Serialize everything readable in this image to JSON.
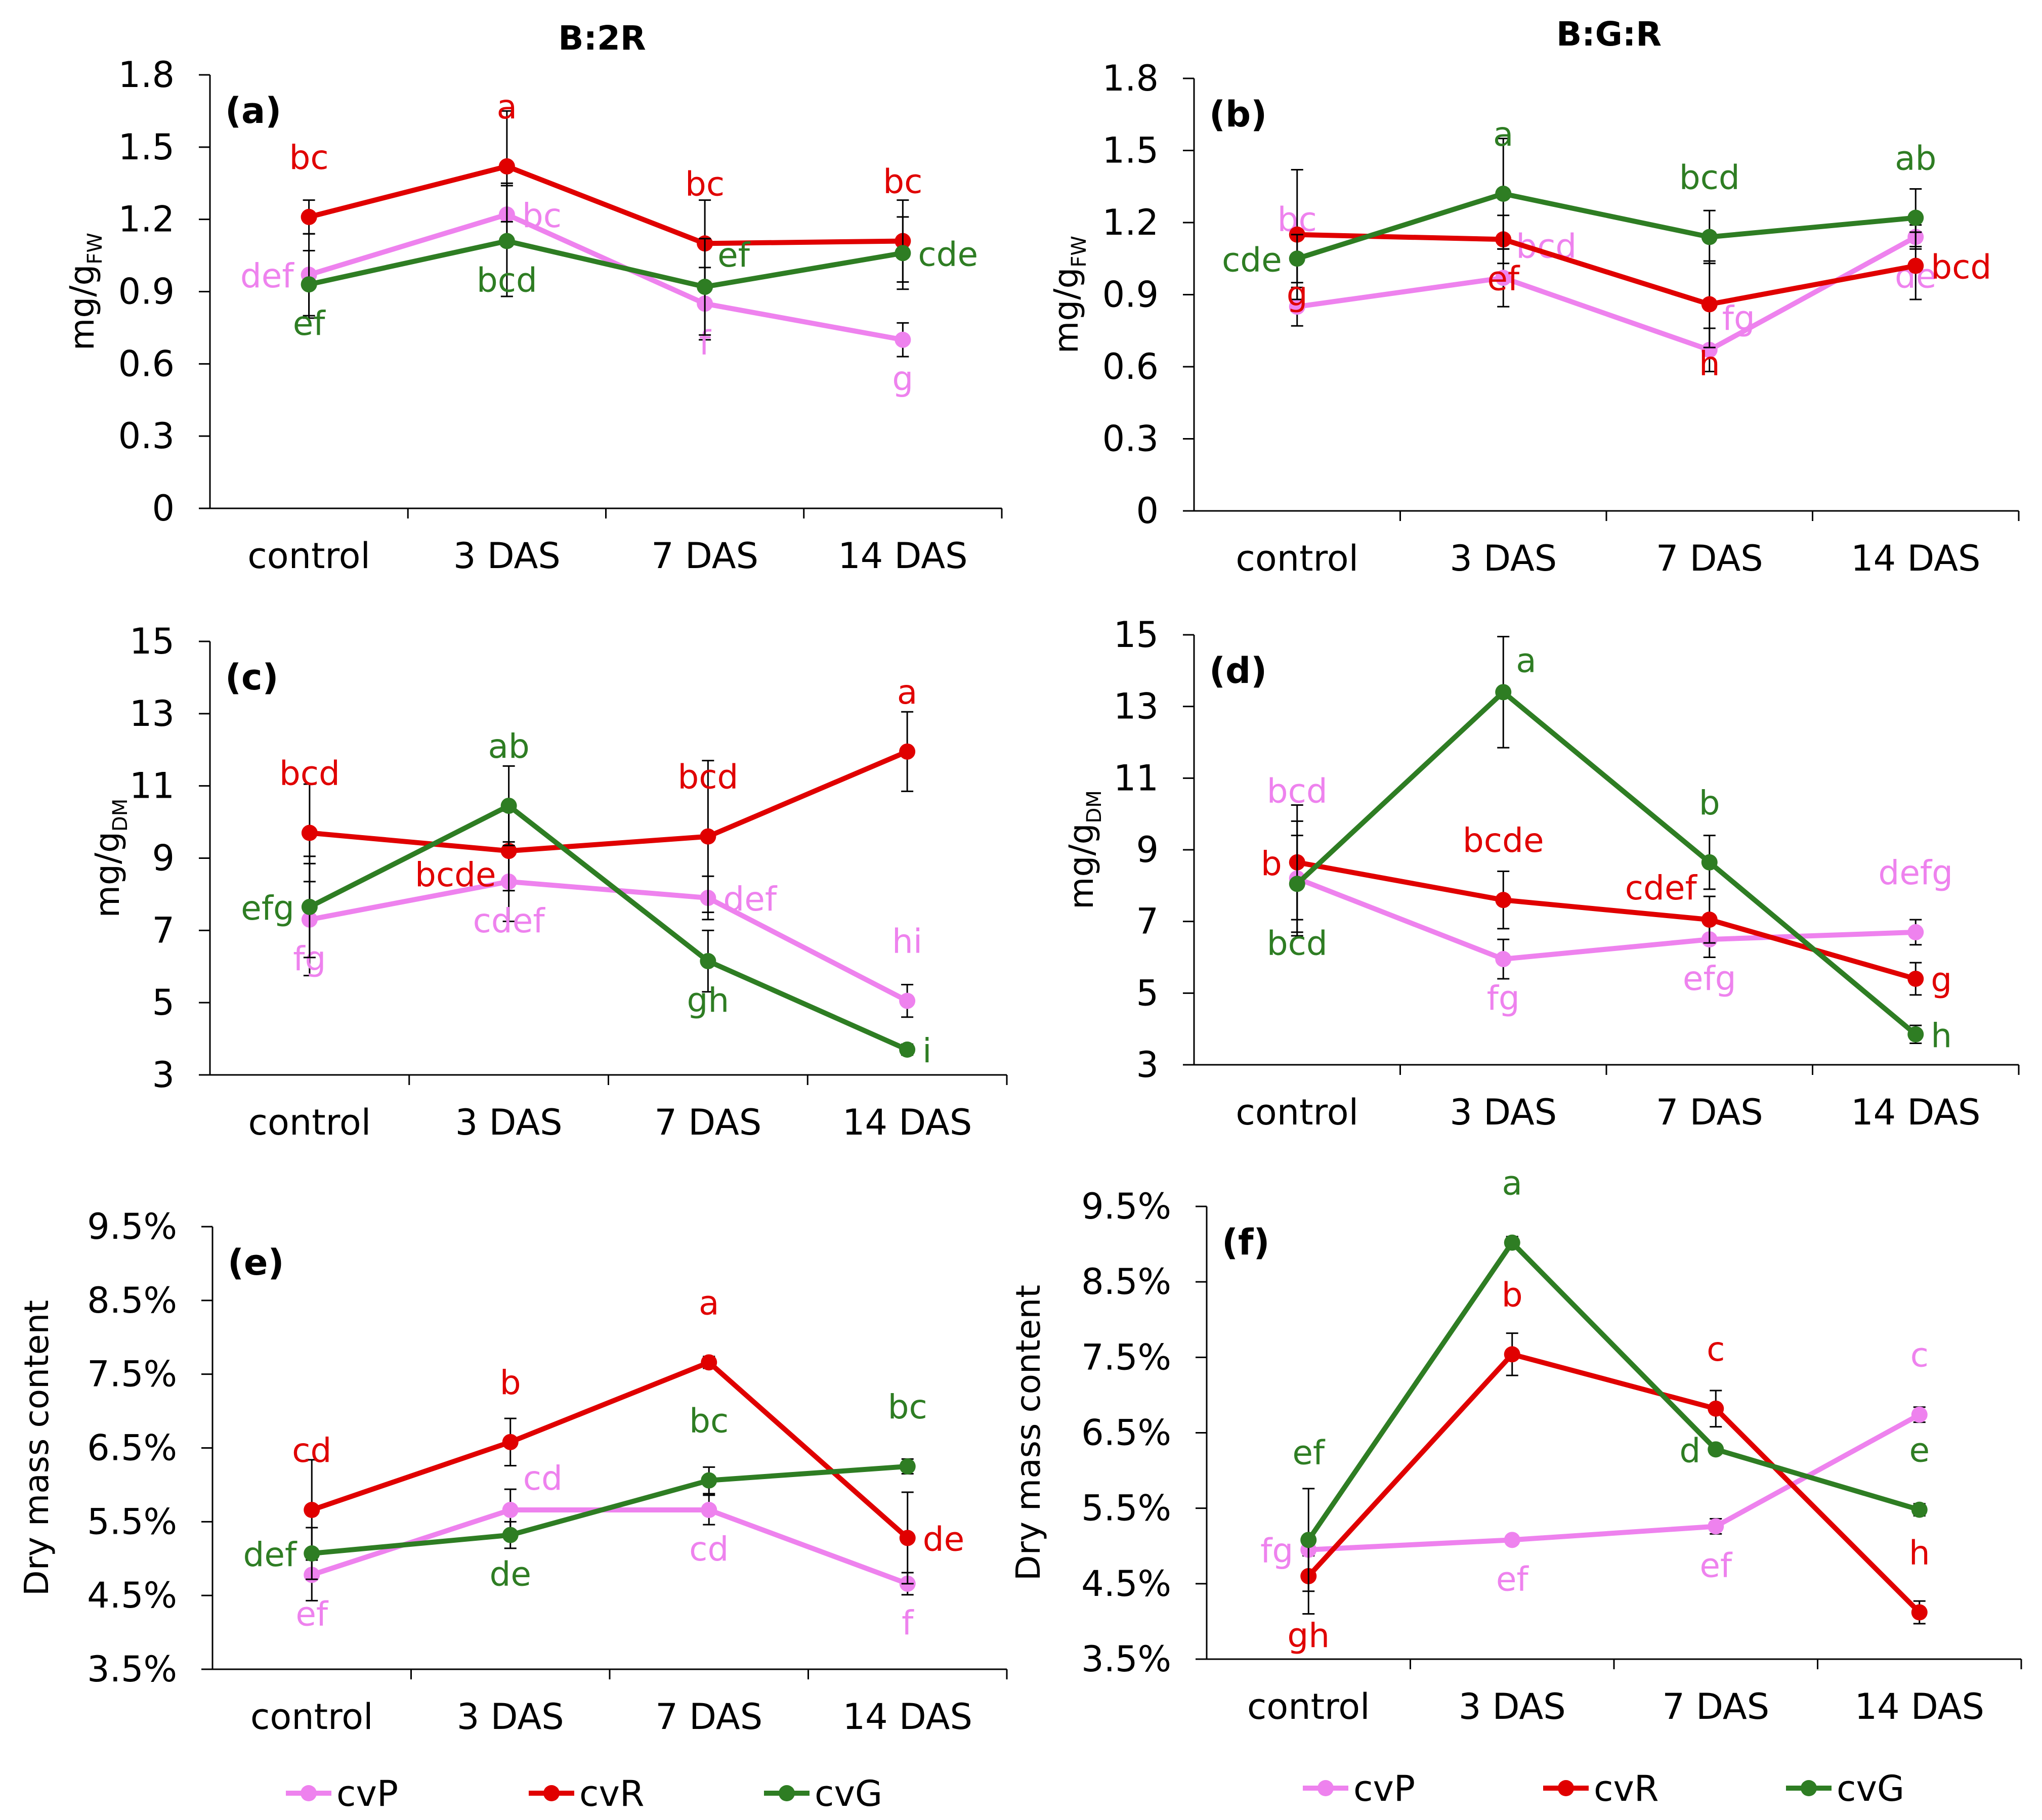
{
  "column_titles": [
    "B:2R",
    "B:G:R"
  ],
  "legend": [
    {
      "key": "cvP",
      "label": "cvP",
      "color": "#ee82ee"
    },
    {
      "key": "cvR",
      "label": "cvR",
      "color": "#e00000"
    },
    {
      "key": "cvG",
      "label": "cvG",
      "color": "#2e7d23"
    }
  ],
  "chart_data": [
    {
      "panel": "(a)",
      "type": "line",
      "column": "B:2R",
      "ylabel": {
        "main": "mg/g",
        "sub": "FW"
      },
      "categories": [
        "control",
        "3 DAS",
        "7 DAS",
        "14 DAS"
      ],
      "yticks": [
        0,
        0.3,
        0.6,
        0.9,
        1.2,
        1.5,
        1.8
      ],
      "ytick_labels": [
        "0",
        "0.3",
        "0.6",
        "0.9",
        "1.2",
        "1.5",
        "1.8"
      ],
      "ylim": [
        0,
        1.8
      ],
      "series": [
        {
          "name": "cvP",
          "values": [
            0.97,
            1.22,
            0.85,
            0.7
          ],
          "err": [
            0.17,
            0.13,
            0.15,
            0.07
          ],
          "letters": [
            "def",
            "bc",
            "f",
            "g"
          ],
          "letter_pos": [
            "l",
            "r",
            "b",
            "b"
          ]
        },
        {
          "name": "cvR",
          "values": [
            1.21,
            1.42,
            1.1,
            1.11
          ],
          "err": [
            0.07,
            0.23,
            0.18,
            0.17
          ],
          "letters": [
            "bc",
            "a",
            "bc",
            "bc"
          ],
          "letter_pos": [
            "t",
            "t",
            "t",
            "t"
          ]
        },
        {
          "name": "cvG",
          "values": [
            0.93,
            1.11,
            0.92,
            1.06
          ],
          "err": [
            0.14,
            0.23,
            0.2,
            0.15
          ],
          "letters": [
            "ef",
            "bcd",
            "ef",
            "cde"
          ],
          "letter_pos": [
            "b",
            "b",
            "tr",
            "r"
          ]
        }
      ]
    },
    {
      "panel": "(b)",
      "type": "line",
      "column": "B:G:R",
      "ylabel": {
        "main": "mg/g",
        "sub": "FW"
      },
      "categories": [
        "control",
        "3 DAS",
        "7 DAS",
        "14 DAS"
      ],
      "yticks": [
        0,
        0.3,
        0.6,
        0.9,
        1.2,
        1.5,
        1.8
      ],
      "ytick_labels": [
        "0",
        "0.3",
        "0.6",
        "0.9",
        "1.2",
        "1.5",
        "1.8"
      ],
      "ylim": [
        0,
        1.8
      ],
      "series": [
        {
          "name": "cvP",
          "values": [
            0.85,
            0.97,
            0.67,
            1.14
          ],
          "err": [
            0.08,
            0.12,
            0.09,
            0.05
          ],
          "letters": [
            "bc",
            "bcd",
            "fg",
            "de"
          ],
          "letter_pos": [
            "tt",
            "tr",
            "tr",
            "b"
          ]
        },
        {
          "name": "cvR",
          "values": [
            1.15,
            1.13,
            0.86,
            1.02
          ],
          "err": [
            0.27,
            0.1,
            0.18,
            0.14
          ],
          "letters": [
            "g",
            "ef",
            "h",
            "bcd"
          ],
          "letter_pos": [
            "bb",
            "b",
            "bb",
            "r"
          ]
        },
        {
          "name": "cvG",
          "values": [
            1.05,
            1.32,
            1.14,
            1.22
          ],
          "err": [
            0.1,
            0.23,
            0.11,
            0.12
          ],
          "letters": [
            "cde",
            "a",
            "bcd",
            "ab"
          ],
          "letter_pos": [
            "l",
            "t",
            "t",
            "t"
          ]
        }
      ]
    },
    {
      "panel": "(c)",
      "type": "line",
      "column": "B:2R",
      "ylabel": {
        "main": "mg/g",
        "sub": "DM"
      },
      "categories": [
        "control",
        "3 DAS",
        "7 DAS",
        "14 DAS"
      ],
      "yticks": [
        3,
        5,
        7,
        9,
        11,
        13,
        15
      ],
      "ytick_labels": [
        "3",
        "5",
        "7",
        "9",
        "11",
        "13",
        "15"
      ],
      "ylim": [
        3,
        15
      ],
      "series": [
        {
          "name": "cvP",
          "values": [
            7.3,
            8.35,
            7.9,
            5.05
          ],
          "err": [
            1.55,
            1.1,
            0.6,
            0.45
          ],
          "letters": [
            "fg",
            "cdef",
            "def",
            "hi"
          ],
          "letter_pos": [
            "b",
            "b",
            "r",
            "t"
          ]
        },
        {
          "name": "cvR",
          "values": [
            9.7,
            9.2,
            9.6,
            11.95
          ],
          "err": [
            1.35,
            1.1,
            2.1,
            1.1
          ],
          "letters": [
            "bcd",
            "bcde",
            "bcd",
            "a"
          ],
          "letter_pos": [
            "t",
            "bl",
            "t",
            "t"
          ]
        },
        {
          "name": "cvG",
          "values": [
            7.65,
            10.45,
            6.15,
            3.7
          ],
          "err": [
            1.4,
            1.1,
            0.85,
            0.15
          ],
          "letters": [
            "efg",
            "ab",
            "gh",
            "i"
          ],
          "letter_pos": [
            "l",
            "t",
            "b",
            "r"
          ]
        }
      ]
    },
    {
      "panel": "(d)",
      "type": "line",
      "column": "B:G:R",
      "ylabel": {
        "main": "mg/g",
        "sub": "DM"
      },
      "categories": [
        "control",
        "3 DAS",
        "7 DAS",
        "14 DAS"
      ],
      "yticks": [
        3,
        5,
        7,
        9,
        11,
        13,
        15
      ],
      "ytick_labels": [
        "3",
        "5",
        "7",
        "9",
        "11",
        "13",
        "15"
      ],
      "ylim": [
        3,
        15
      ],
      "series": [
        {
          "name": "cvP",
          "values": [
            8.2,
            5.95,
            6.5,
            6.7
          ],
          "err": [
            1.6,
            0.55,
            0.5,
            0.35
          ],
          "letters": [
            "bcd",
            "fg",
            "efg",
            "defg"
          ],
          "letter_pos": [
            "tt",
            "b",
            "b",
            "t"
          ]
        },
        {
          "name": "cvR",
          "values": [
            8.65,
            7.6,
            7.05,
            5.4
          ],
          "err": [
            1.6,
            0.8,
            0.65,
            0.45
          ],
          "letters": [
            "b",
            "bcde",
            "cdef",
            "g"
          ],
          "letter_pos": [
            "l",
            "t",
            "tl",
            "r"
          ]
        },
        {
          "name": "cvG",
          "values": [
            8.05,
            13.4,
            8.65,
            3.85
          ],
          "err": [
            1.35,
            1.55,
            0.75,
            0.25
          ],
          "letters": [
            "bcd",
            "a",
            "b",
            "h"
          ],
          "letter_pos": [
            "bb",
            "tr",
            "t",
            "r"
          ]
        }
      ]
    },
    {
      "panel": "(e)",
      "type": "line",
      "column": "B:2R",
      "ylabel": {
        "main": "Dry mass content",
        "sub": ""
      },
      "categories": [
        "control",
        "3 DAS",
        "7 DAS",
        "14 DAS"
      ],
      "yticks": [
        3.5,
        4.5,
        5.5,
        6.5,
        7.5,
        8.5,
        9.5
      ],
      "ytick_labels": [
        "3.5%",
        "4.5%",
        "5.5%",
        "6.5%",
        "7.5%",
        "8.5%",
        "9.5%"
      ],
      "ylim": [
        3.5,
        9.5
      ],
      "series": [
        {
          "name": "cvP",
          "values": [
            4.78,
            5.66,
            5.66,
            4.66
          ],
          "err": [
            0.35,
            0.28,
            0.2,
            0.15
          ],
          "letters": [
            "ef",
            "cd",
            "cd",
            "f"
          ],
          "letter_pos": [
            "b",
            "tr",
            "b",
            "b"
          ]
        },
        {
          "name": "cvR",
          "values": [
            5.66,
            6.58,
            7.66,
            5.28
          ],
          "err": [
            0.68,
            0.32,
            0.08,
            0.62
          ],
          "letters": [
            "cd",
            "b",
            "a",
            "de"
          ],
          "letter_pos": [
            "t",
            "t",
            "t",
            "r"
          ]
        },
        {
          "name": "cvG",
          "values": [
            5.07,
            5.32,
            6.06,
            6.25
          ],
          "err": [
            0.35,
            0.18,
            0.18,
            0.1
          ],
          "letters": [
            "def",
            "de",
            "bc",
            "bc"
          ],
          "letter_pos": [
            "l",
            "b",
            "t",
            "t"
          ]
        }
      ]
    },
    {
      "panel": "(f)",
      "type": "line",
      "column": "B:G:R",
      "ylabel": {
        "main": "Dry mass content",
        "sub": ""
      },
      "categories": [
        "control",
        "3 DAS",
        "7 DAS",
        "14 DAS"
      ],
      "yticks": [
        3.5,
        4.5,
        5.5,
        6.5,
        7.5,
        8.5,
        9.5
      ],
      "ytick_labels": [
        "3.5%",
        "4.5%",
        "5.5%",
        "6.5%",
        "7.5%",
        "8.5%",
        "9.5%"
      ],
      "ylim": [
        3.5,
        9.5
      ],
      "series": [
        {
          "name": "cvP",
          "values": [
            4.95,
            5.08,
            5.26,
            6.74
          ],
          "err": [
            0.08,
            0.06,
            0.1,
            0.1
          ],
          "letters": [
            "fg",
            "ef",
            "ef",
            "c"
          ],
          "letter_pos": [
            "l",
            "b",
            "b",
            "t"
          ]
        },
        {
          "name": "cvR",
          "values": [
            4.6,
            7.54,
            6.82,
            4.12
          ],
          "err": [
            0.5,
            0.28,
            0.24,
            0.15
          ],
          "letters": [
            "gh",
            "b",
            "c",
            "h"
          ],
          "letter_pos": [
            "bb",
            "t",
            "t",
            "t"
          ]
        },
        {
          "name": "cvG",
          "values": [
            5.08,
            9.02,
            6.28,
            5.48
          ],
          "err": [
            0.68,
            0.08,
            0.06,
            0.08
          ],
          "letters": [
            "ef",
            "a",
            "d",
            "e"
          ],
          "letter_pos": [
            "tt",
            "t",
            "l",
            "t"
          ]
        }
      ]
    }
  ]
}
